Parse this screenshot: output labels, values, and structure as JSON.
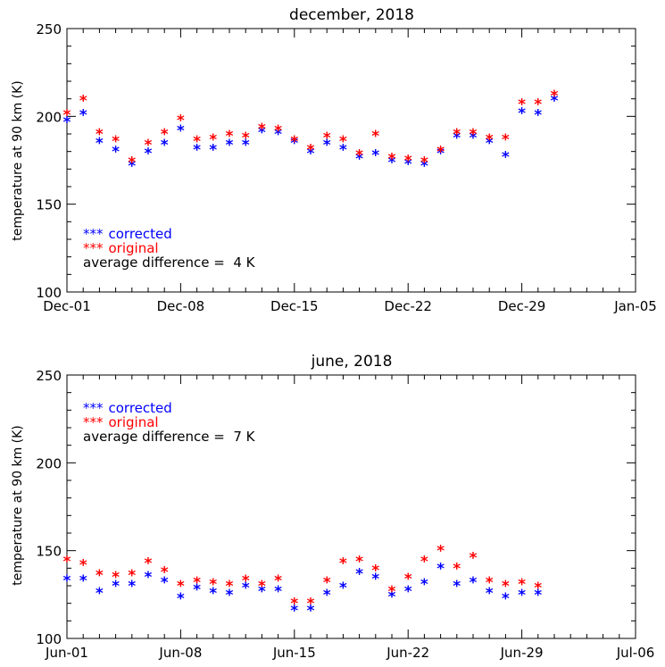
{
  "chart_data": [
    {
      "type": "scatter",
      "title": "december, 2018",
      "ylabel": "temperature at 90 km (K)",
      "xlabel": "",
      "ylim": [
        100,
        250
      ],
      "yticks": [
        100,
        150,
        200,
        250
      ],
      "xlim": [
        "Dec-01",
        "Jan-05"
      ],
      "xticks": [
        "Dec-01",
        "Dec-08",
        "Dec-15",
        "Dec-22",
        "Dec-29",
        "Jan-05"
      ],
      "x": [
        1,
        2,
        3,
        4,
        5,
        6,
        7,
        8,
        9,
        10,
        11,
        12,
        13,
        14,
        15,
        16,
        17,
        18,
        19,
        20,
        21,
        22,
        23,
        24,
        25,
        26,
        27,
        28,
        29,
        30,
        31
      ],
      "series": [
        {
          "name": "corrected",
          "color": "#0000ff",
          "values": [
            198,
            202,
            186,
            181,
            173,
            180,
            185,
            193,
            182,
            182,
            185,
            185,
            192,
            191,
            186,
            180,
            185,
            182,
            177,
            179,
            175,
            174,
            173,
            180,
            189,
            189,
            186,
            178,
            203,
            202,
            210
          ]
        },
        {
          "name": "original",
          "color": "#ff0000",
          "values": [
            202,
            210,
            191,
            187,
            175,
            185,
            191,
            199,
            187,
            188,
            190,
            189,
            194,
            193,
            187,
            182,
            189,
            187,
            179,
            190,
            177,
            176,
            175,
            181,
            191,
            191,
            188,
            188,
            208,
            208,
            213
          ]
        }
      ],
      "legend": {
        "position": "lower-left",
        "marker": "***",
        "entries": [
          "corrected",
          "original"
        ],
        "note": "average difference =  4 K"
      },
      "grid": false
    },
    {
      "type": "scatter",
      "title": "june, 2018",
      "ylabel": "temperature at 90 km (K)",
      "xlabel": "",
      "ylim": [
        100,
        250
      ],
      "yticks": [
        100,
        150,
        200,
        250
      ],
      "xlim": [
        "Jun-01",
        "Jul-06"
      ],
      "xticks": [
        "Jun-01",
        "Jun-08",
        "Jun-15",
        "Jun-22",
        "Jun-29",
        "Jul-06"
      ],
      "x": [
        1,
        2,
        3,
        4,
        5,
        6,
        7,
        8,
        9,
        10,
        11,
        12,
        13,
        14,
        15,
        16,
        17,
        18,
        19,
        20,
        21,
        22,
        23,
        24,
        25,
        26,
        27,
        28,
        29,
        30
      ],
      "series": [
        {
          "name": "corrected",
          "color": "#0000ff",
          "values": [
            134,
            134,
            127,
            131,
            131,
            136,
            133,
            124,
            129,
            127,
            126,
            130,
            128,
            128,
            117,
            117,
            126,
            130,
            138,
            135,
            125,
            128,
            132,
            141,
            131,
            133,
            127,
            124,
            126,
            126
          ]
        },
        {
          "name": "original",
          "color": "#ff0000",
          "values": [
            145,
            143,
            137,
            136,
            137,
            144,
            139,
            131,
            133,
            132,
            131,
            134,
            131,
            134,
            121,
            121,
            133,
            144,
            145,
            140,
            128,
            135,
            145,
            151,
            141,
            147,
            133,
            131,
            132,
            130
          ]
        }
      ],
      "legend": {
        "position": "upper-left",
        "marker": "***",
        "entries": [
          "corrected",
          "original"
        ],
        "note": "average difference =  7 K"
      },
      "grid": false
    }
  ]
}
